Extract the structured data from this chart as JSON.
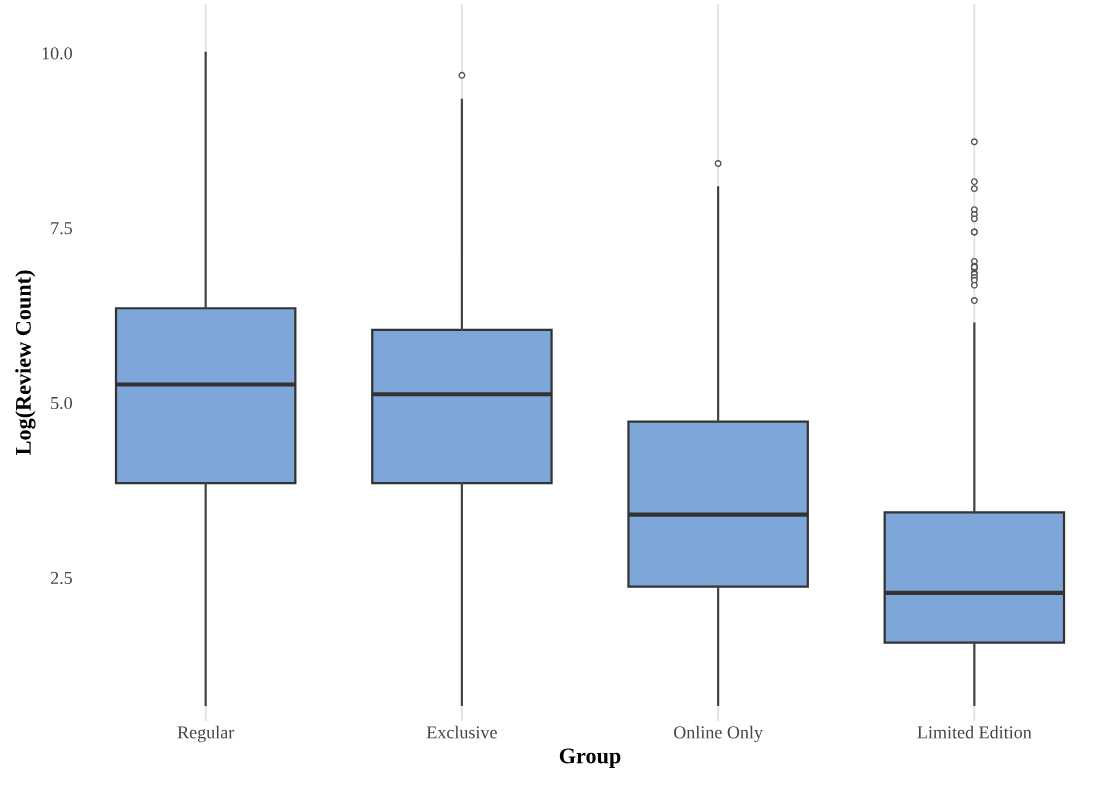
{
  "chart_data": {
    "type": "box",
    "xlabel": "Group",
    "ylabel": "Log(Review Count)",
    "categories": [
      "Regular",
      "Exclusive",
      "Online Only",
      "Limited Edition"
    ],
    "color": "#7ea6d8",
    "boxes": [
      {
        "low": 0.68,
        "q1": 3.85,
        "median": 5.26,
        "q3": 6.35,
        "high": 10.0
      },
      {
        "low": 0.68,
        "q1": 3.85,
        "median": 5.12,
        "q3": 6.04,
        "high": 9.33,
        "outliers": [
          9.68
        ]
      },
      {
        "low": 0.68,
        "q1": 2.37,
        "median": 3.4,
        "q3": 4.73,
        "high": 8.08,
        "outliers": [
          8.42
        ]
      },
      {
        "low": 0.68,
        "q1": 1.57,
        "median": 2.28,
        "q3": 3.43,
        "high": 6.13,
        "outliers": [
          8.73,
          8.16,
          8.06,
          7.76,
          7.69,
          7.63,
          7.44,
          7.44,
          7.02,
          6.95,
          6.92,
          6.94,
          6.85,
          6.84,
          6.79,
          6.75,
          6.68,
          6.46
        ]
      }
    ],
    "ylim": [
      0.45,
      10.7
    ],
    "yticks": [
      {
        "value": 2.5,
        "label": "2.5"
      },
      {
        "value": 5,
        "label": "5.0"
      },
      {
        "value": 7.5,
        "label": "7.5"
      },
      {
        "value": 10,
        "label": "10.0"
      }
    ],
    "grid": "x"
  }
}
